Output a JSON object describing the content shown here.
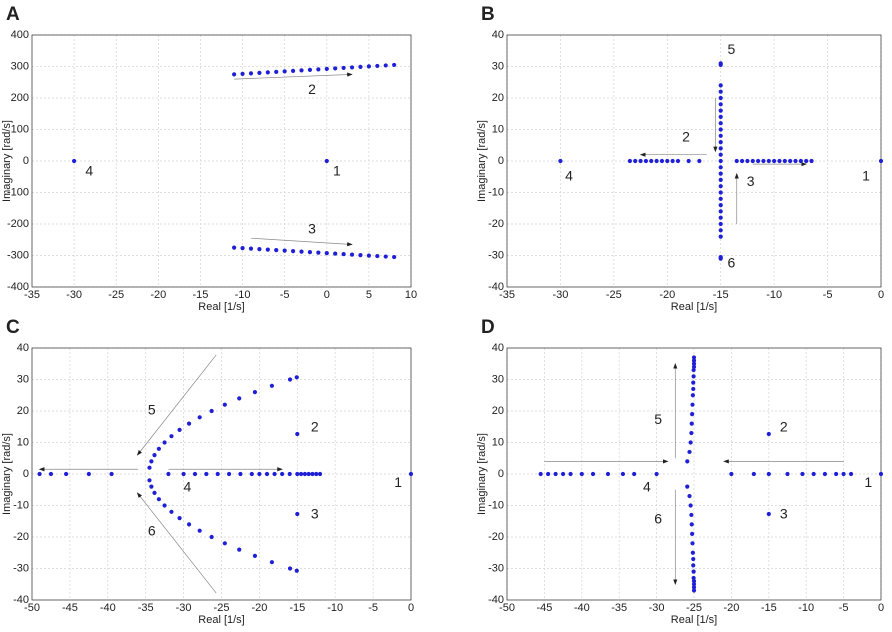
{
  "chart_data": [
    {
      "type": "scatter",
      "title": "A",
      "xlabel": "Real [1/s]",
      "ylabel": "Imaginary [rad/s]",
      "xlim": [
        -35,
        10
      ],
      "ylim": [
        -400,
        400
      ],
      "xticks": [
        -35,
        -30,
        -25,
        -20,
        -15,
        -10,
        -5,
        0,
        5,
        10
      ],
      "yticks": [
        -400,
        -300,
        -200,
        -100,
        0,
        100,
        200,
        300,
        400
      ],
      "grid": true,
      "series": [
        {
          "color": "#1f1fd6",
          "x": [
            -11,
            -10,
            -9,
            -8,
            -7,
            -6,
            -5,
            -4,
            -3,
            -2,
            -1,
            0,
            1,
            2,
            3,
            4,
            5,
            6,
            7,
            8
          ],
          "values": [
            275,
            276.6,
            278.2,
            279.7,
            281.3,
            282.9,
            284.5,
            286.1,
            287.6,
            289.2,
            290.8,
            292.4,
            293.9,
            295.5,
            297.1,
            298.7,
            300.3,
            301.8,
            303.4,
            305
          ]
        },
        {
          "color": "#1f1fd6",
          "x": [
            -11,
            -10,
            -9,
            -8,
            -7,
            -6,
            -5,
            -4,
            -3,
            -2,
            -1,
            0,
            1,
            2,
            3,
            4,
            5,
            6,
            7,
            8
          ],
          "values": [
            -275,
            -276.6,
            -278.2,
            -279.7,
            -281.3,
            -282.9,
            -284.5,
            -286.1,
            -287.6,
            -289.2,
            -290.8,
            -292.4,
            -293.9,
            -295.5,
            -297.1,
            -298.7,
            -300.3,
            -301.8,
            -303.4,
            -305
          ]
        },
        {
          "color": "#1f1fd6",
          "x": [
            -30,
            0
          ],
          "values": [
            0,
            0
          ]
        }
      ],
      "annotations": [
        {
          "text": "4",
          "x": -28.2,
          "y": -35
        },
        {
          "text": "1",
          "x": 1.2,
          "y": -35
        },
        {
          "text": "2",
          "x": -1.75,
          "y": 225
        },
        {
          "text": "3",
          "x": -1.75,
          "y": -219
        }
      ]
    },
    {
      "type": "scatter",
      "title": "B",
      "xlabel": "Real [1/s]",
      "ylabel": "Imaginary [rad/s]",
      "xlim": [
        -35,
        0
      ],
      "ylim": [
        -40,
        40
      ],
      "xticks": [
        -35,
        -30,
        -25,
        -20,
        -15,
        -10,
        -5,
        0
      ],
      "yticks": [
        -40,
        -30,
        -20,
        -10,
        0,
        10,
        20,
        30,
        40
      ],
      "grid": true,
      "series": [
        {
          "color": "#1f1fd6",
          "x": [
            -15,
            -15,
            -15,
            -15,
            -15,
            -15,
            -15,
            -15,
            -15,
            -15,
            -15,
            -15,
            -15,
            -15,
            -15,
            -15,
            -15,
            -15,
            -15,
            -15,
            -15,
            -15,
            -15,
            -15,
            -15,
            -15,
            -15,
            -15,
            -15
          ],
          "values": [
            -31,
            -30.5,
            -24,
            -22,
            -20,
            -18,
            -16,
            -14,
            -12,
            -10,
            -8,
            -6,
            -4,
            -2,
            0,
            2,
            4,
            6,
            8,
            10,
            12,
            14,
            16,
            18,
            20,
            22,
            24,
            30.5,
            31
          ]
        },
        {
          "color": "#1f1fd6",
          "x": [
            -23.5,
            -23,
            -22.5,
            -22,
            -21.5,
            -21,
            -20.5,
            -20,
            -19.5,
            -19,
            -18,
            -17
          ],
          "values": [
            0,
            0,
            0,
            0,
            0,
            0,
            0,
            0,
            0,
            0,
            0,
            0
          ]
        },
        {
          "color": "#1f1fd6",
          "x": [
            -13.5,
            -13,
            -12.5,
            -12,
            -11.5,
            -11,
            -10.5,
            -10,
            -9.5,
            -9,
            -8.5,
            -8,
            -7.5,
            -7,
            -6.5
          ],
          "values": [
            0,
            0,
            0,
            0,
            0,
            0,
            0,
            0,
            0,
            0,
            0,
            0,
            0,
            0,
            0
          ]
        },
        {
          "color": "#1f1fd6",
          "x": [
            -30,
            0
          ],
          "values": [
            0,
            0
          ]
        }
      ],
      "annotations": [
        {
          "text": "5",
          "x": -14,
          "y": 35.2
        },
        {
          "text": "6",
          "x": -14,
          "y": -32.7
        },
        {
          "text": "2",
          "x": -18.25,
          "y": 7.3
        },
        {
          "text": "3",
          "x": -12.2,
          "y": -6.7
        },
        {
          "text": "4",
          "x": -29.2,
          "y": -5
        },
        {
          "text": "1",
          "x": -1.4,
          "y": -5
        }
      ]
    },
    {
      "type": "scatter",
      "title": "C",
      "xlabel": "Real [1/s]",
      "ylabel": "Imaginary [rad/s]",
      "xlim": [
        -50,
        0
      ],
      "ylim": [
        -40,
        40
      ],
      "xticks": [
        -50,
        -45,
        -40,
        -35,
        -30,
        -25,
        -20,
        -15,
        -10,
        -5,
        0
      ],
      "yticks": [
        -40,
        -30,
        -20,
        -10,
        0,
        10,
        20,
        30,
        40
      ],
      "grid": true,
      "series": [
        {
          "color": "#1f1fd6",
          "x": [
            -34.5,
            -34.25,
            -33.84,
            -33.26,
            -32.51,
            -31.6,
            -30.53,
            -29.28,
            -27.88,
            -26.3,
            -24.56,
            -22.66,
            -20.59,
            -18.35,
            -15.96,
            -15.07
          ],
          "values": [
            2,
            4,
            6,
            8,
            10,
            12,
            14,
            16,
            18,
            20,
            22,
            24,
            26,
            28,
            30,
            30.7
          ]
        },
        {
          "color": "#1f1fd6",
          "x": [
            -34.5,
            -34.25,
            -33.84,
            -33.26,
            -32.51,
            -31.6,
            -30.53,
            -29.28,
            -27.88,
            -26.3,
            -24.56,
            -22.66,
            -20.59,
            -18.35,
            -15.96,
            -15.07
          ],
          "values": [
            -2,
            -4,
            -6,
            -8,
            -10,
            -12,
            -14,
            -16,
            -18,
            -20,
            -22,
            -24,
            -26,
            -28,
            -30,
            -30.7
          ]
        },
        {
          "color": "#1f1fd6",
          "x": [
            -49,
            -47.5,
            -45.5,
            -42.5,
            -39.5,
            -32,
            -30,
            -28.5,
            -27,
            -25.5,
            -24,
            -22.5,
            -21,
            -20,
            -19,
            -18,
            -17,
            -16,
            -15,
            -14.5,
            -14,
            -13.5,
            -13,
            -12.5,
            -12
          ],
          "values": [
            0,
            0,
            0,
            0,
            0,
            0,
            0,
            0,
            0,
            0,
            0,
            0,
            0,
            0,
            0,
            0,
            0,
            0,
            0,
            0,
            0,
            0,
            0,
            0,
            0
          ]
        },
        {
          "color": "#1f1fd6",
          "x": [
            0,
            -15,
            -15
          ],
          "values": [
            0,
            12.7,
            -12.7
          ]
        }
      ],
      "annotations": [
        {
          "text": "5",
          "x": -34.2,
          "y": 20
        },
        {
          "text": "6",
          "x": -34.2,
          "y": -18.4
        },
        {
          "text": "4",
          "x": -29.5,
          "y": -4.4
        },
        {
          "text": "2",
          "x": -12.7,
          "y": 14.6
        },
        {
          "text": "3",
          "x": -12.7,
          "y": -13
        },
        {
          "text": "1",
          "x": -1.7,
          "y": -2.9
        }
      ]
    },
    {
      "type": "scatter",
      "title": "D",
      "xlabel": "Real [1/s]",
      "ylabel": "Imaginary [rad/s]",
      "xlim": [
        -50,
        0
      ],
      "ylim": [
        -40,
        40
      ],
      "xticks": [
        -50,
        -45,
        -40,
        -35,
        -30,
        -25,
        -20,
        -15,
        -10,
        -5,
        0
      ],
      "yticks": [
        -40,
        -30,
        -20,
        -10,
        0,
        10,
        20,
        30,
        40
      ],
      "grid": true,
      "series": [
        {
          "color": "#1f1fd6",
          "x": [
            -25.9,
            -25.6,
            -25.45,
            -25.35,
            -25.3,
            -25.25,
            -25.2,
            -25.15,
            -25.1,
            -25.1,
            -25.05,
            -25.05,
            -25,
            -25,
            -25,
            -25
          ],
          "values": [
            4,
            7,
            10,
            13,
            16,
            19,
            22,
            25,
            27,
            29,
            31,
            33,
            34,
            35,
            36,
            37
          ]
        },
        {
          "color": "#1f1fd6",
          "x": [
            -25.9,
            -25.6,
            -25.45,
            -25.35,
            -25.3,
            -25.25,
            -25.2,
            -25.15,
            -25.1,
            -25.1,
            -25.05,
            -25.05,
            -25,
            -25,
            -25,
            -25
          ],
          "values": [
            -4,
            -7,
            -10,
            -13,
            -16,
            -19,
            -22,
            -25,
            -27,
            -29,
            -31,
            -33,
            -34,
            -35,
            -36,
            -37
          ]
        },
        {
          "color": "#1f1fd6",
          "x": [
            -45.5,
            -44.5,
            -43.5,
            -42.5,
            -41.5,
            -40,
            -38.5,
            -36.5,
            -34.5,
            -33,
            -30,
            -20,
            -17,
            -15,
            -12.5,
            -10.5,
            -9,
            -7.5,
            -6,
            -5,
            -4
          ],
          "values": [
            0,
            0,
            0,
            0,
            0,
            0,
            0,
            0,
            0,
            0,
            0,
            0,
            0,
            0,
            0,
            0,
            0,
            0,
            0,
            0,
            0
          ]
        },
        {
          "color": "#1f1fd6",
          "x": [
            0,
            -15,
            -15
          ],
          "values": [
            0,
            12.7,
            -12.7
          ]
        }
      ],
      "annotations": [
        {
          "text": "5",
          "x": -29.8,
          "y": 17.1
        },
        {
          "text": "6",
          "x": -29.8,
          "y": -14.6
        },
        {
          "text": "4",
          "x": -31.3,
          "y": -4.4
        },
        {
          "text": "2",
          "x": -13,
          "y": 14.6
        },
        {
          "text": "3",
          "x": -13,
          "y": -13
        },
        {
          "text": "1",
          "x": -1.7,
          "y": -2.9
        }
      ]
    }
  ]
}
